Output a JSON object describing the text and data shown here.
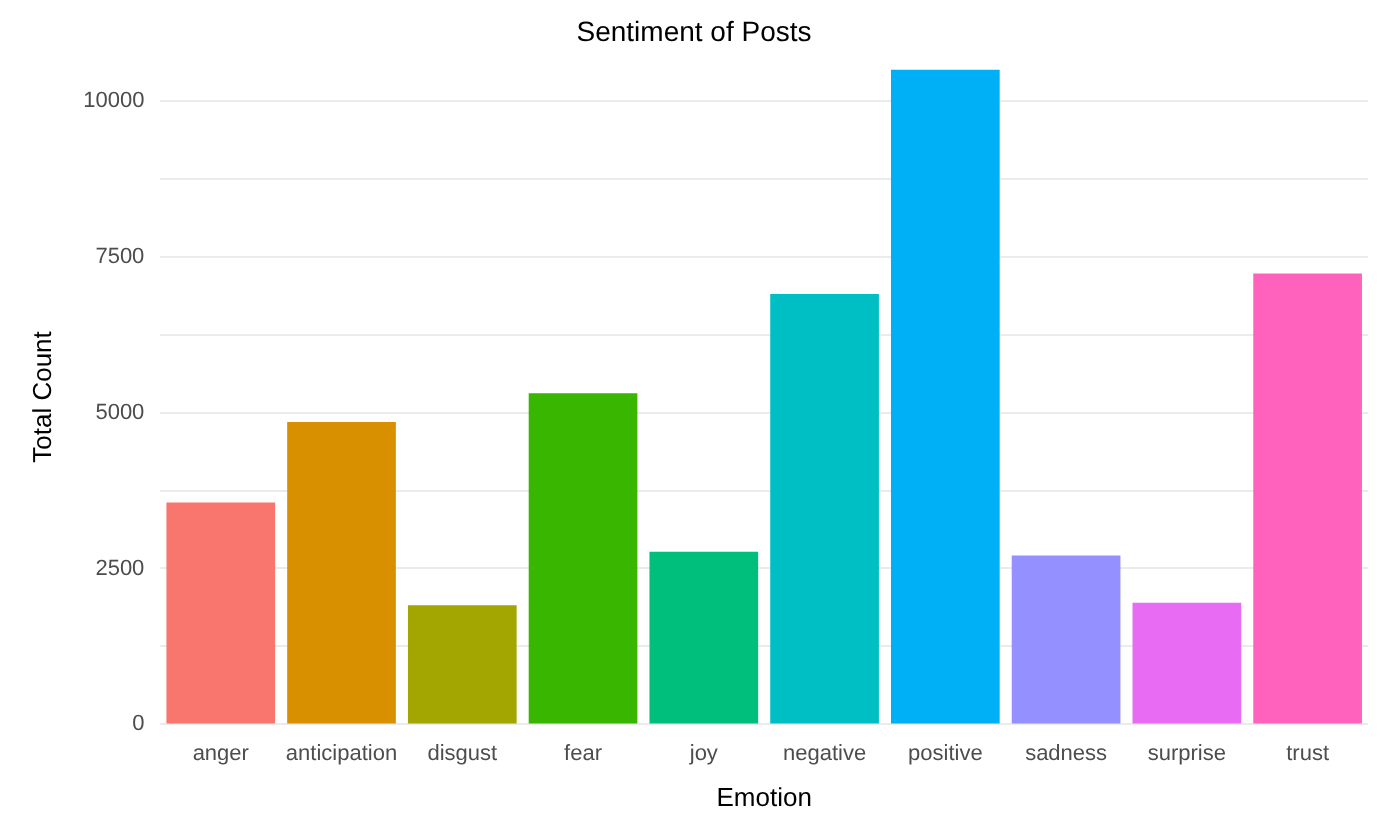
{
  "chart_data": {
    "type": "bar",
    "title": "Sentiment of Posts",
    "xlabel": "Emotion",
    "ylabel": "Total Count",
    "categories": [
      "anger",
      "anticipation",
      "disgust",
      "fear",
      "joy",
      "negative",
      "positive",
      "sadness",
      "surprise",
      "trust"
    ],
    "values": [
      3560,
      4850,
      1910,
      5310,
      2770,
      6900,
      10500,
      2710,
      1950,
      7230
    ],
    "colors": [
      "#f8766d",
      "#d89000",
      "#a3a500",
      "#39b600",
      "#00bf7d",
      "#00bfc4",
      "#00b0f6",
      "#9590ff",
      "#e76bf3",
      "#ff62bc"
    ],
    "ylim": [
      0,
      10500
    ],
    "yticks": [
      0,
      {
        "value": 1250,
        "label": null
      },
      2500,
      {
        "value": 3750,
        "label": null
      },
      5000,
      {
        "value": 6250,
        "label": null
      },
      7500,
      {
        "value": 8750,
        "label": null
      },
      10000
    ],
    "grid": "y",
    "legend": false
  }
}
